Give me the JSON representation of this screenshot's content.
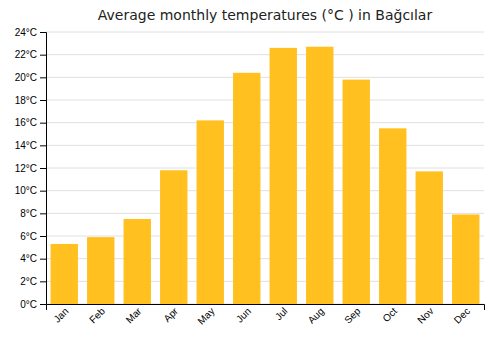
{
  "chart_data": {
    "type": "bar",
    "title": "Average monthly temperatures (°C ) in Bağcılar",
    "categories": [
      "Jan",
      "Feb",
      "Mar",
      "Apr",
      "May",
      "Jun",
      "Jul",
      "Aug",
      "Sep",
      "Oct",
      "Nov",
      "Dec"
    ],
    "values": [
      5.3,
      5.9,
      7.5,
      11.8,
      16.2,
      20.4,
      22.6,
      22.7,
      19.8,
      15.5,
      11.7,
      7.9
    ],
    "color": "#FFC020",
    "ylim": [
      0,
      24
    ],
    "yticks": [
      {
        "value": 0,
        "label": "0°C"
      },
      {
        "value": 2,
        "label": "2°C"
      },
      {
        "value": 4,
        "label": "4°C"
      },
      {
        "value": 6,
        "label": "6°C"
      },
      {
        "value": 8,
        "label": "8°C"
      },
      {
        "value": 10,
        "label": "10°C"
      },
      {
        "value": 12,
        "label": "12°C"
      },
      {
        "value": 14,
        "label": "14°C"
      },
      {
        "value": 16,
        "label": "16°C"
      },
      {
        "value": 18,
        "label": "18°C"
      },
      {
        "value": 20,
        "label": "20°C"
      },
      {
        "value": 22,
        "label": "22°C"
      },
      {
        "value": 24,
        "label": "24°C"
      }
    ],
    "grid": true
  }
}
